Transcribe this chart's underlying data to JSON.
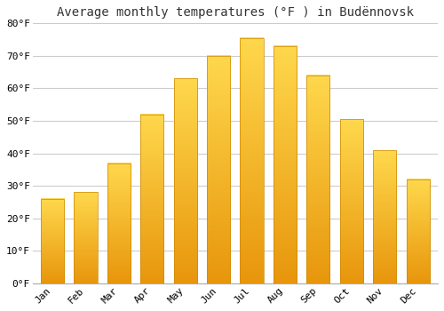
{
  "title": "Average monthly temperatures (°F ) in Budënnovsk",
  "months": [
    "Jan",
    "Feb",
    "Mar",
    "Apr",
    "May",
    "Jun",
    "Jul",
    "Aug",
    "Sep",
    "Oct",
    "Nov",
    "Dec"
  ],
  "values": [
    26,
    28,
    37,
    52,
    63,
    70,
    75.5,
    73,
    64,
    50.5,
    41,
    32
  ],
  "bar_color_main": "#FFB300",
  "bar_color_light": "#FFD54F",
  "bar_edge_color": "#E65100",
  "background_color": "#FFFFFF",
  "plot_bg_color": "#FFFFFF",
  "grid_color": "#CCCCCC",
  "ylim": [
    0,
    80
  ],
  "yticks": [
    0,
    10,
    20,
    30,
    40,
    50,
    60,
    70,
    80
  ],
  "title_fontsize": 10,
  "tick_fontsize": 8,
  "font_family": "monospace"
}
